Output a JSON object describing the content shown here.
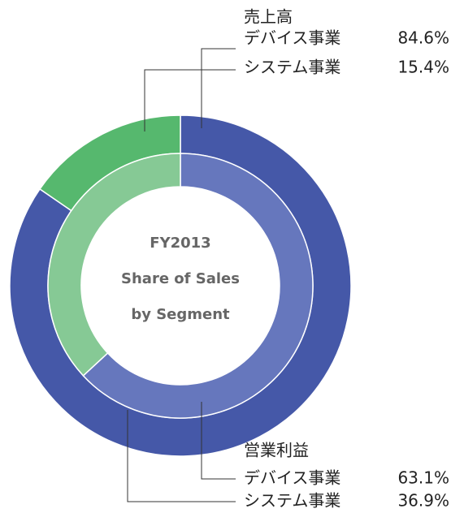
{
  "chart_data": {
    "type": "donut",
    "center_text": [
      "FY2013",
      "Share of Sales",
      "by Segment"
    ],
    "categories": [
      "デバイス事業",
      "システム事業"
    ],
    "series": [
      {
        "name": "売上高",
        "values": [
          84.6,
          15.4
        ],
        "value_labels": [
          "84.6%",
          "15.4%"
        ],
        "colors": [
          "#4558a8",
          "#56b86e"
        ]
      },
      {
        "name": "営業利益",
        "values": [
          63.1,
          36.9
        ],
        "value_labels": [
          "63.1%",
          "36.9%"
        ],
        "colors": [
          "#6677bd",
          "#86c995"
        ]
      }
    ]
  }
}
